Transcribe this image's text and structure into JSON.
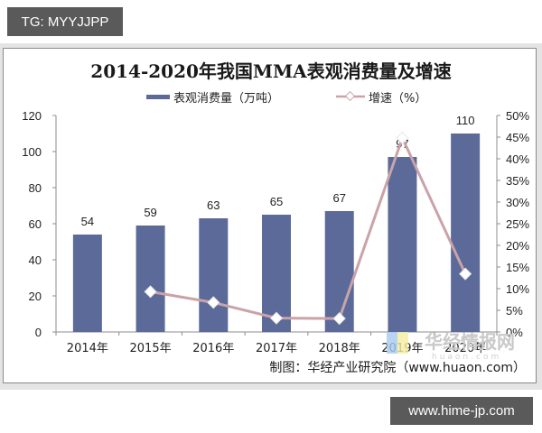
{
  "watermarks": {
    "top_tag": "TG: MYYJJPP",
    "bottom_tag": "www.hime-jp.com",
    "overlay_logo": "华经情报网",
    "overlay_url": "huaon.com"
  },
  "chart_meta": {
    "colors": {
      "bar": "#5b6a99",
      "line": "#c9a3a8",
      "marker_fill": "#ffffff",
      "axis": "#8c8c8c"
    },
    "source": "制图：华经产业研究院（www.huaon.com）"
  },
  "chart_data": {
    "type": "bar",
    "title": "2014-2020年我国MMA表观消费量及增速",
    "categories": [
      "2014年",
      "2015年",
      "2016年",
      "2017年",
      "2018年",
      "2019年",
      "2020年"
    ],
    "series": [
      {
        "name": "表观消费量（万吨）",
        "type": "bar",
        "axis": "left",
        "values": [
          54,
          59,
          63,
          65,
          67,
          97,
          110
        ],
        "labels": [
          "54",
          "59",
          "63",
          "65",
          "67",
          "97",
          "110"
        ]
      },
      {
        "name": "增速（%）",
        "type": "line",
        "axis": "right",
        "values": [
          null,
          9.3,
          6.8,
          3.2,
          3.1,
          44.8,
          13.4
        ]
      }
    ],
    "xlabel": "",
    "ylabel": "",
    "ylim": [
      0,
      120
    ],
    "yticks": [
      "0",
      "20",
      "40",
      "60",
      "80",
      "100",
      "120"
    ],
    "y2lim": [
      0,
      50
    ],
    "y2ticks": [
      "0%",
      "5%",
      "10%",
      "15%",
      "20%",
      "25%",
      "30%",
      "35%",
      "40%",
      "45%",
      "50%"
    ],
    "legend_position": "top",
    "grid": false
  }
}
